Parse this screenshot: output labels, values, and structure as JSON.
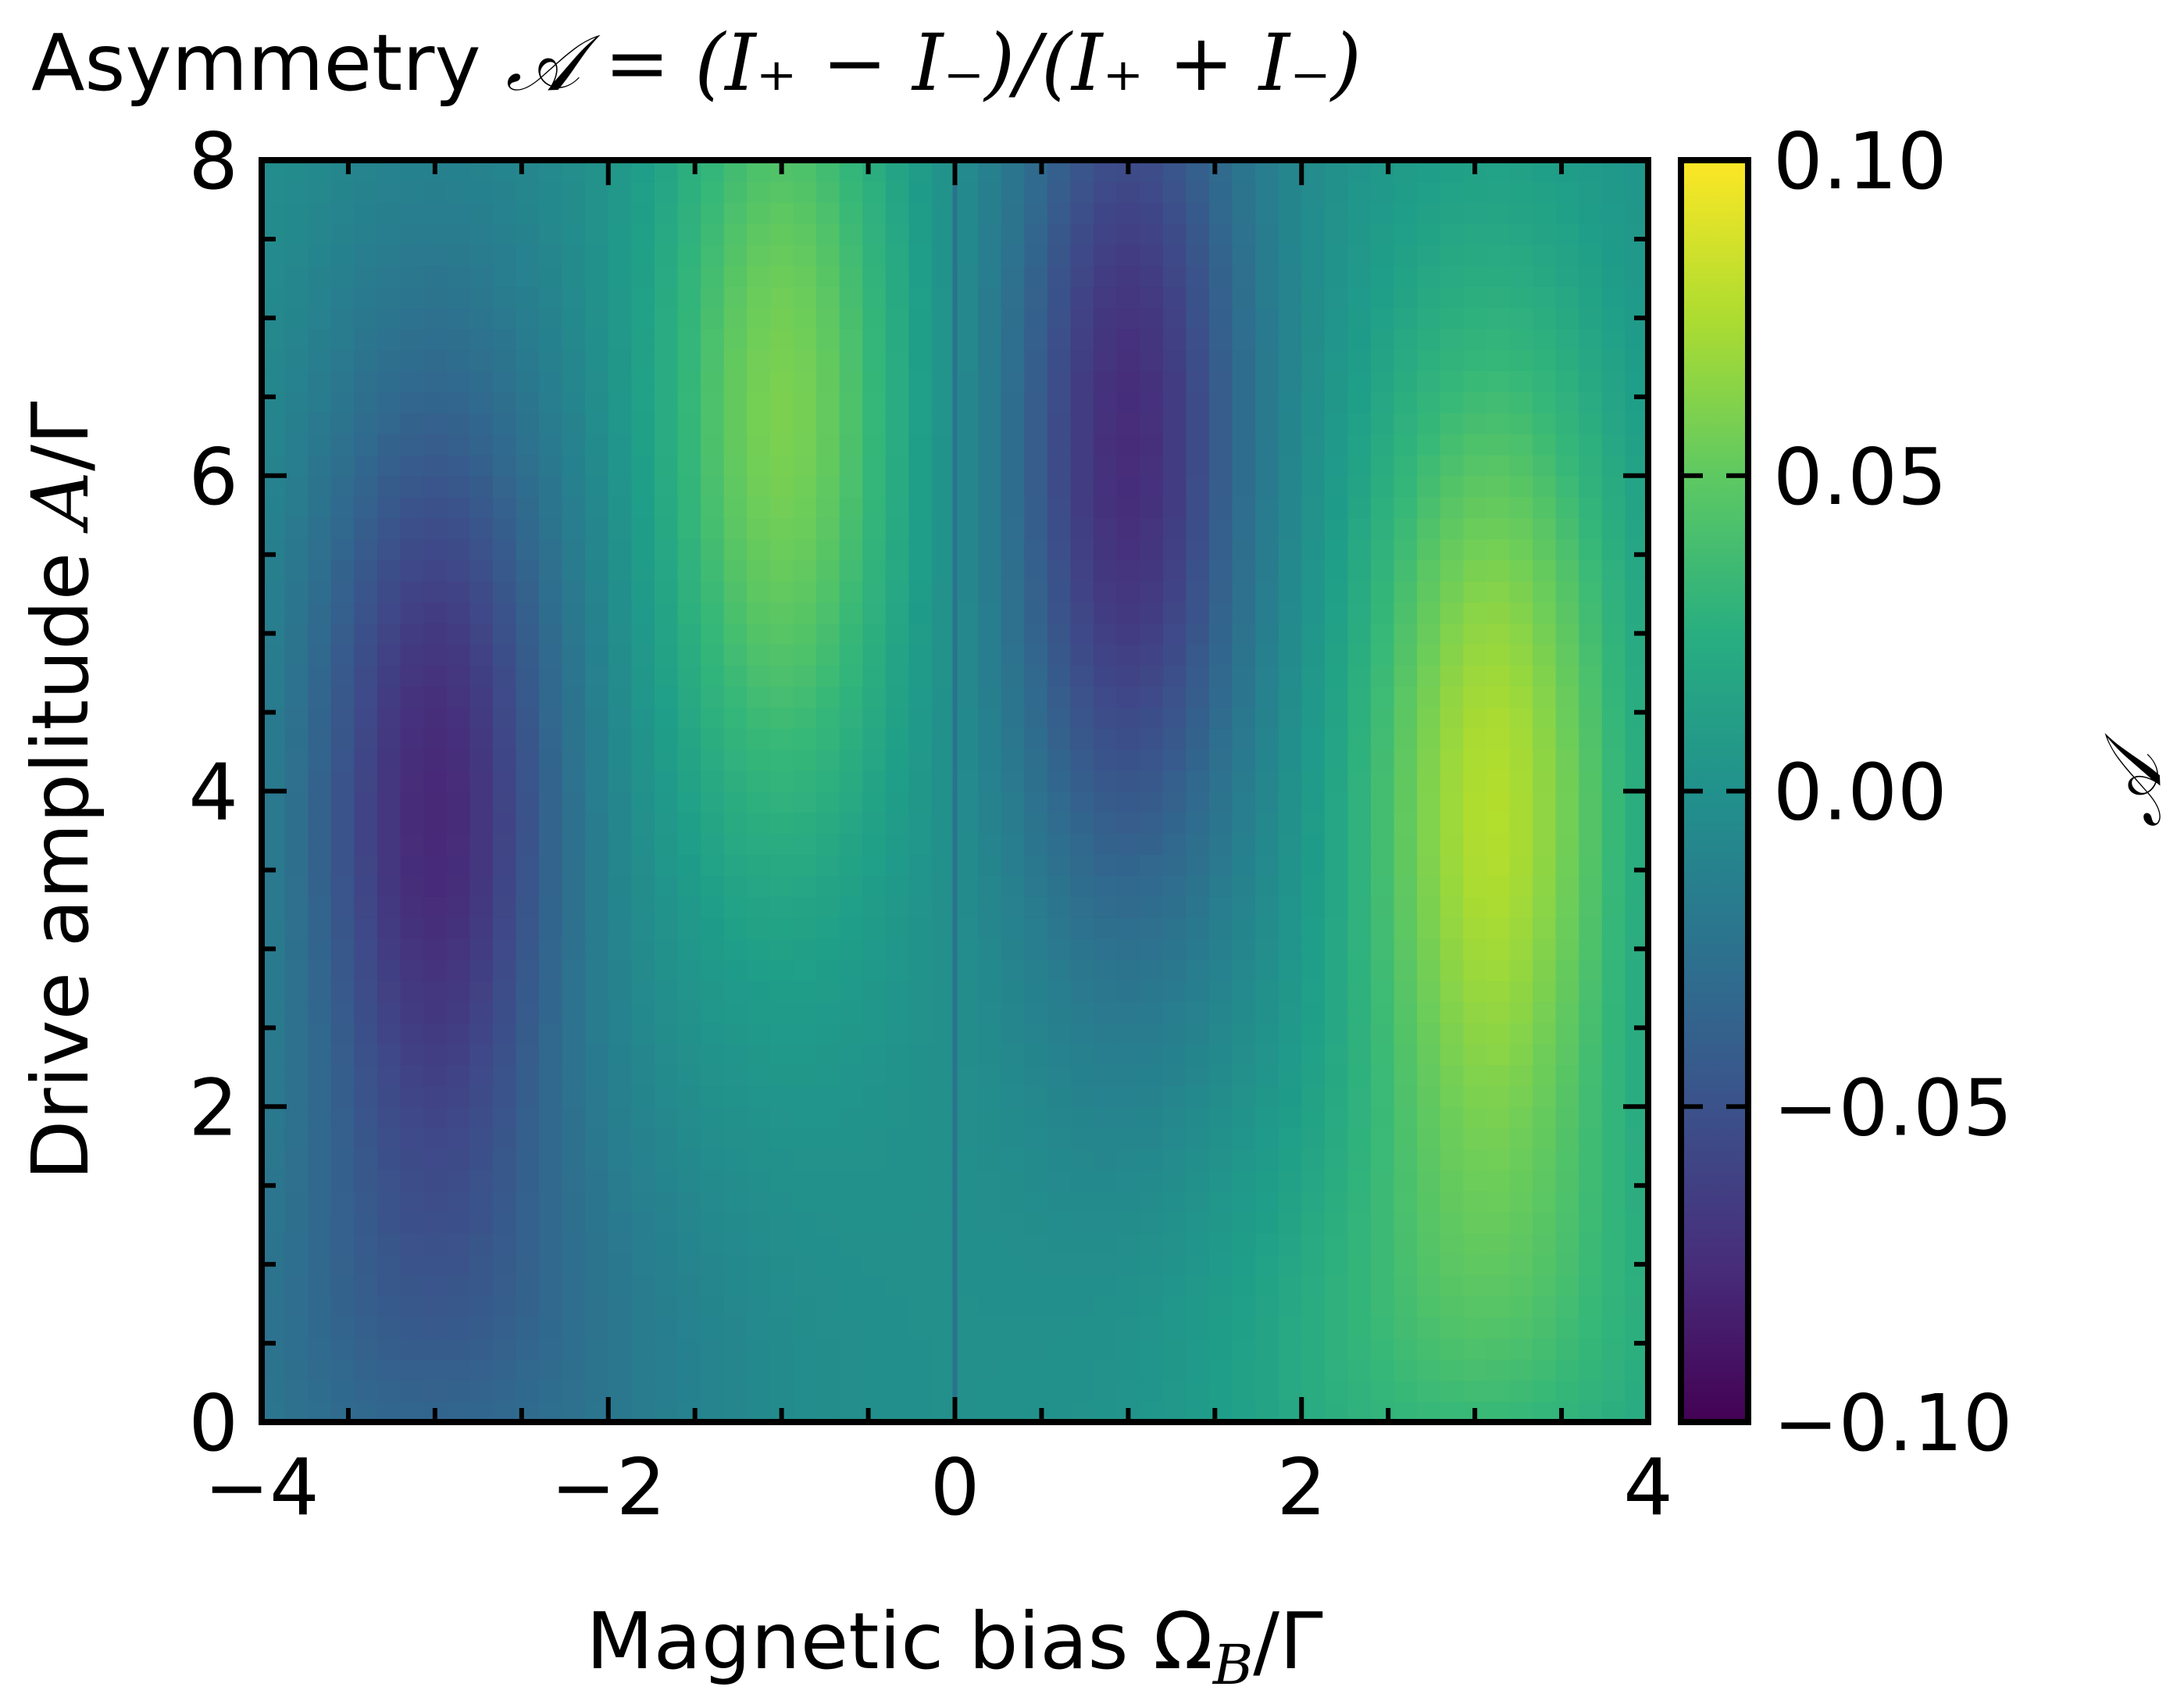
{
  "chart_data": {
    "type": "heatmap",
    "title": "Asymmetry 𝒜 = (I₊ − I₋)/(I₊ + I₋)",
    "title_parts": {
      "prefix": "Asymmetry ",
      "formula": "𝒜 = (I₊ − I₋)/(I₊ + I₋)"
    },
    "xlabel": "Magnetic bias Ω_B/Γ",
    "xlabel_parts": {
      "prefix": "Magnetic bias ",
      "symbol": "Ω",
      "sub": "B",
      "suffix": "/Γ"
    },
    "ylabel": "Drive amplitude A/Γ",
    "ylabel_parts": {
      "prefix": "Drive amplitude ",
      "symbol": "A",
      "suffix": "/Γ"
    },
    "colorbar_label": "𝒜",
    "colormap": "viridis",
    "xlim": [
      -4,
      4
    ],
    "ylim": [
      0,
      8
    ],
    "clim": [
      -0.1,
      0.1
    ],
    "x_ticks": [
      -4,
      -2,
      0,
      2,
      4
    ],
    "x_tick_labels": [
      "−4",
      "−2",
      "0",
      "2",
      "4"
    ],
    "y_ticks": [
      0,
      2,
      4,
      6,
      8
    ],
    "y_tick_labels": [
      "0",
      "2",
      "4",
      "6",
      "8"
    ],
    "colorbar_ticks": [
      -0.1,
      -0.05,
      0,
      0.05,
      0.1
    ],
    "colorbar_tick_labels": [
      "−0.10",
      "−0.05",
      "0.00",
      "0.05",
      "0.10"
    ],
    "grid": false,
    "zero_line_x": 0,
    "features": [
      {
        "x": -3.0,
        "y": 3.8,
        "value": -0.1
      },
      {
        "x": -1.0,
        "y": 6.5,
        "value": 0.06
      },
      {
        "x": 1.0,
        "y": 6.2,
        "value": -0.08
      },
      {
        "x": 3.1,
        "y": 3.8,
        "value": 0.1
      }
    ],
    "value_at_low_amplitude": {
      "y": 0,
      "left_x": -3.0,
      "left_value": -0.04,
      "right_x": 3.0,
      "right_value": 0.04
    }
  }
}
